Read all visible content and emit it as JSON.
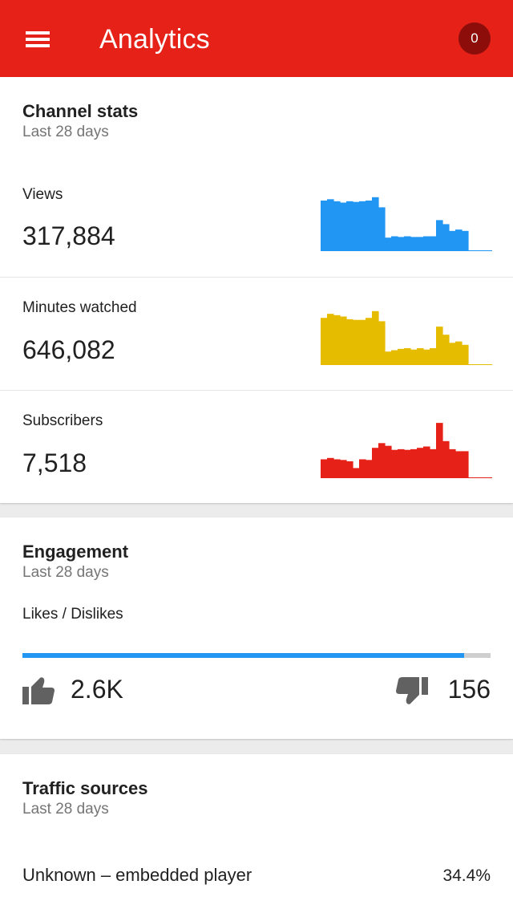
{
  "appbar": {
    "title": "Analytics",
    "notification_count": "0",
    "color": "#e62117"
  },
  "channel_stats": {
    "title": "Channel stats",
    "subtitle": "Last 28 days",
    "rows": [
      {
        "label": "Views",
        "value": "317,884",
        "color": "#2196f3",
        "series": [
          75,
          77,
          74,
          72,
          74,
          73,
          74,
          75,
          80,
          65,
          20,
          22,
          21,
          22,
          21,
          21,
          22,
          22,
          46,
          40,
          30,
          32,
          30,
          0
        ]
      },
      {
        "label": "Minutes watched",
        "value": "646,082",
        "color": "#e6bc00",
        "series": [
          70,
          76,
          74,
          72,
          68,
          67,
          67,
          70,
          80,
          65,
          20,
          22,
          24,
          25,
          23,
          25,
          23,
          25,
          57,
          45,
          33,
          35,
          30,
          0
        ]
      },
      {
        "label": "Subscribers",
        "value": "7,518",
        "color": "#e62117",
        "series": [
          28,
          30,
          28,
          27,
          25,
          15,
          28,
          27,
          45,
          52,
          48,
          42,
          43,
          42,
          43,
          45,
          47,
          43,
          82,
          55,
          43,
          40,
          40,
          0
        ]
      }
    ]
  },
  "engagement": {
    "title": "Engagement",
    "subtitle": "Last 28 days",
    "ratio_label": "Likes / Dislikes",
    "likes": "2.6K",
    "dislikes": "156",
    "like_fraction": 0.944,
    "like_color": "#2196f3",
    "icons": {
      "like": "thumb-up-icon",
      "dislike": "thumb-down-icon"
    }
  },
  "traffic": {
    "title": "Traffic sources",
    "subtitle": "Last 28 days",
    "items": [
      {
        "name": "Unknown – embedded player",
        "percent": "34.4%"
      }
    ]
  }
}
